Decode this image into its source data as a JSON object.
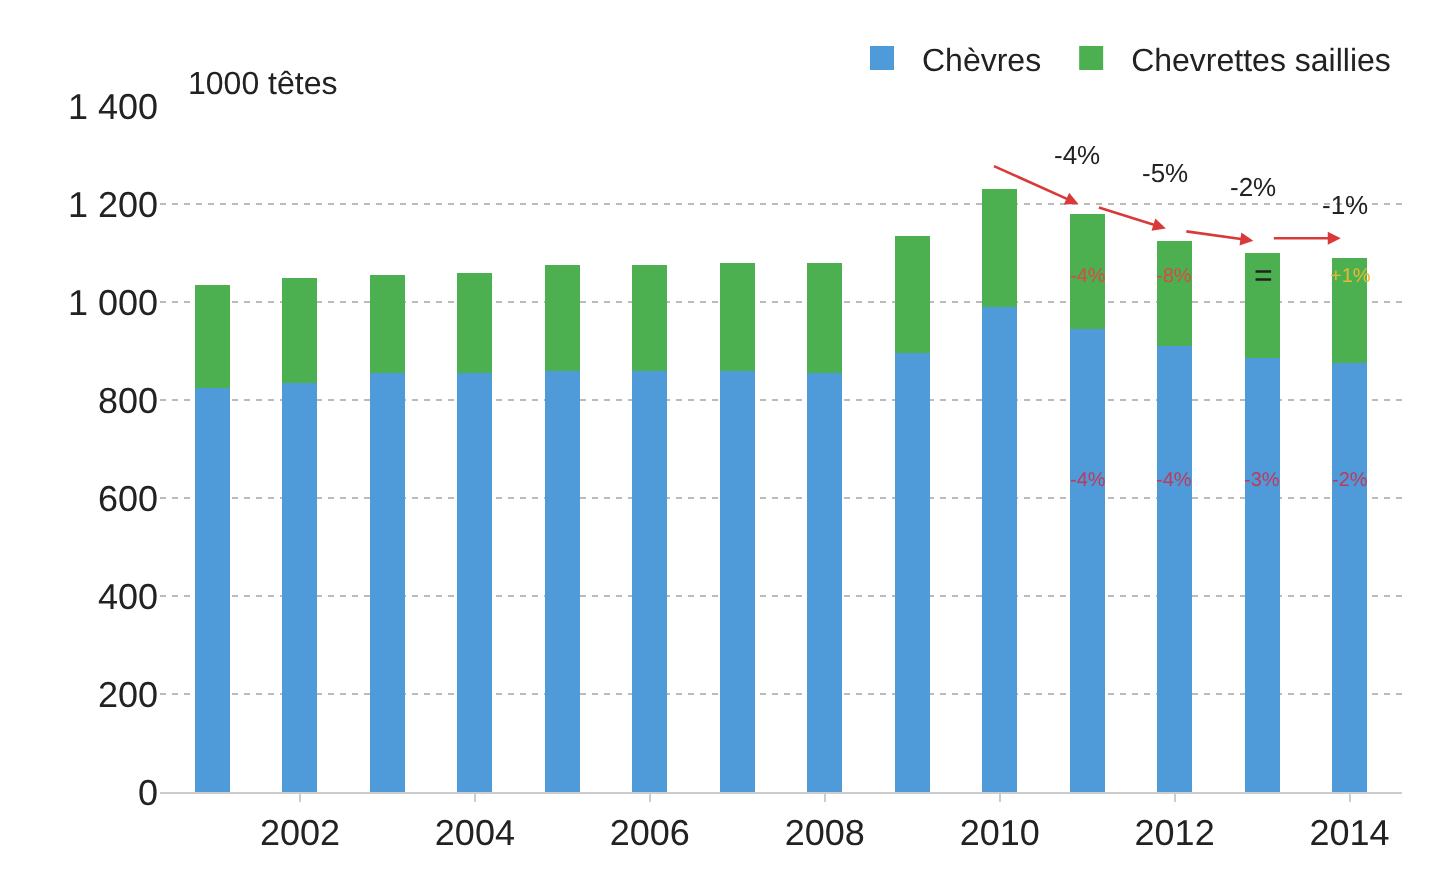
{
  "chart_data": {
    "type": "bar",
    "stacked": true,
    "ylabel": "1000 têtes",
    "categories": [
      null,
      "2002",
      null,
      "2004",
      null,
      "2006",
      null,
      "2008",
      null,
      "2010",
      null,
      "2012",
      null,
      "2014"
    ],
    "series": [
      {
        "name": "Chèvres",
        "color": "#4f9ad8",
        "values": [
          825,
          835,
          855,
          855,
          860,
          860,
          860,
          855,
          895,
          990,
          945,
          910,
          885,
          875
        ]
      },
      {
        "name": "Chevrettes saillies",
        "color": "#4cb050",
        "values": [
          210,
          215,
          200,
          205,
          215,
          215,
          220,
          225,
          240,
          240,
          235,
          215,
          215,
          215
        ]
      }
    ],
    "ylim": [
      0,
      1400
    ],
    "yticks": [
      0,
      200,
      400,
      600,
      800,
      {
        "value": 1000,
        "label": "1 000"
      },
      {
        "value": 1200,
        "label": "1 200"
      },
      {
        "value": 1400,
        "label": "1 400"
      }
    ],
    "grid": "y",
    "legend": "top right",
    "annotations": [
      "-4%",
      "-5%",
      "-2%",
      "-1%",
      "-4%",
      "-8%",
      "=",
      "+1%",
      "-4%",
      "-4%",
      "-3%",
      "-2%"
    ]
  }
}
